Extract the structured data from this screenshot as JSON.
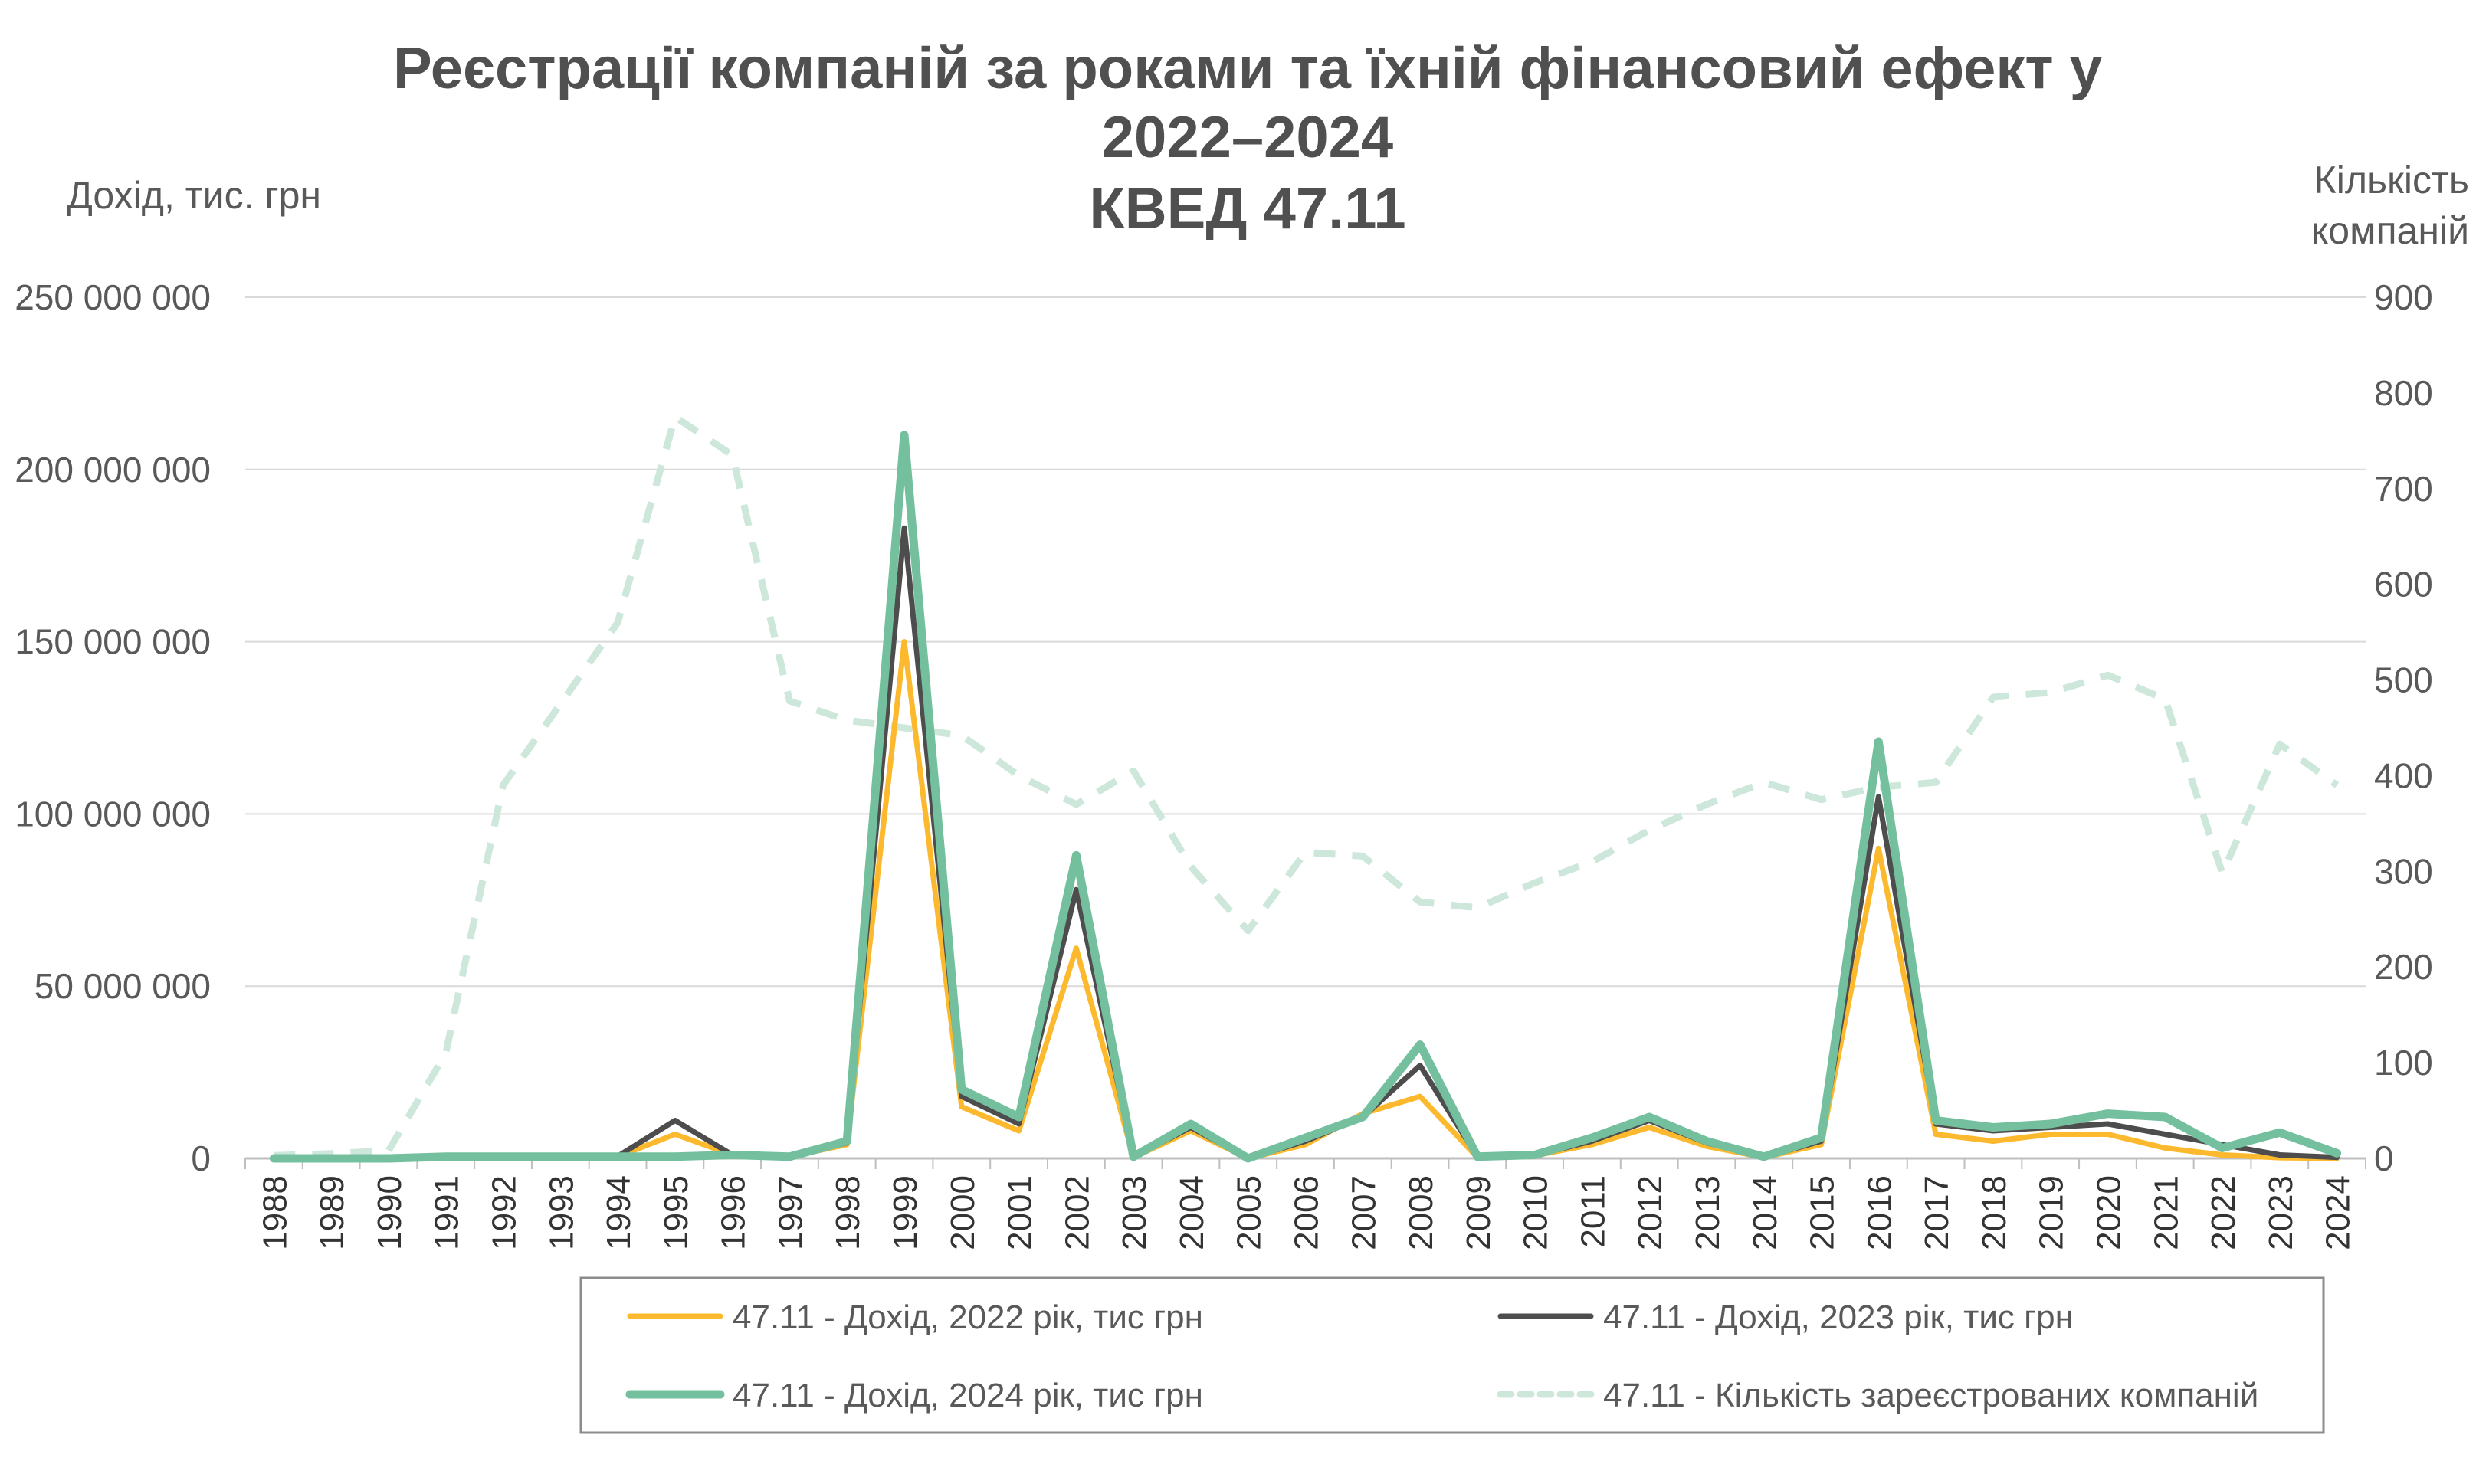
{
  "chart_data": {
    "type": "line",
    "title": [
      "Реєстрації компаній за роками та їхній фінансовий ефект у",
      "2022–2024",
      "КВЕД 47.11"
    ],
    "ylabel": "Дохід, тис. грн",
    "y2label": [
      "Кількість",
      "компаній"
    ],
    "ylim": [
      0,
      250000000
    ],
    "y2lim": [
      0,
      900
    ],
    "yticks": [
      "0",
      "50 000 000",
      "100 000 000",
      "150 000 000",
      "200 000 000",
      "250 000 000"
    ],
    "y2ticks": [
      "0",
      "100",
      "200",
      "300",
      "400",
      "500",
      "600",
      "700",
      "800",
      "900"
    ],
    "grid": true,
    "legend_position": "bottom",
    "categories": [
      "1988",
      "1989",
      "1990",
      "1991",
      "1992",
      "1993",
      "1994",
      "1995",
      "1996",
      "1997",
      "1998",
      "1999",
      "2000",
      "2001",
      "2002",
      "2003",
      "2004",
      "2005",
      "2006",
      "2007",
      "2008",
      "2009",
      "2010",
      "2011",
      "2012",
      "2013",
      "2014",
      "2015",
      "2016",
      "2017",
      "2018",
      "2019",
      "2020",
      "2021",
      "2022",
      "2023",
      "2024"
    ],
    "series": [
      {
        "name": "47.11 -  Дохід, 2022 рік, тис грн",
        "axis": "left",
        "color": "#FDB92E",
        "dashed": false,
        "values": [
          0,
          0,
          0,
          300000,
          300000,
          300000,
          500000,
          7000000,
          1000000,
          500000,
          4000000,
          150000000,
          15000000,
          8000000,
          61000000,
          300000,
          8000000,
          0,
          4000000,
          13000000,
          18000000,
          300000,
          800000,
          4000000,
          9000000,
          3500000,
          300000,
          4000000,
          90000000,
          7000000,
          5000000,
          7000000,
          7000000,
          3000000,
          1000000,
          200000,
          0
        ]
      },
      {
        "name": "47.11 -  Дохід, 2023 рік, тис грн",
        "axis": "left",
        "color": "#4D4D4D",
        "dashed": false,
        "values": [
          0,
          0,
          0,
          300000,
          300000,
          400000,
          600000,
          11000000,
          1000000,
          500000,
          4500000,
          183000000,
          18000000,
          10000000,
          78000000,
          400000,
          9000000,
          0,
          5000000,
          12000000,
          27000000,
          400000,
          900000,
          5000000,
          11000000,
          4500000,
          400000,
          5000000,
          105000000,
          10000000,
          8000000,
          9000000,
          10000000,
          7000000,
          4000000,
          1000000,
          300000
        ]
      },
      {
        "name": "47.11 -  Дохід, 2024 рік, тис грн",
        "axis": "left",
        "color": "#74C09E",
        "dashed": false,
        "values": [
          0,
          0,
          0,
          500000,
          500000,
          500000,
          500000,
          500000,
          1000000,
          500000,
          5000000,
          210000000,
          20000000,
          12000000,
          88000000,
          500000,
          10000000,
          0,
          6000000,
          12000000,
          33000000,
          500000,
          1000000,
          6000000,
          12000000,
          5000000,
          500000,
          6000000,
          121000000,
          11000000,
          9000000,
          10000000,
          13000000,
          12000000,
          3000000,
          7500000,
          1500000
        ]
      },
      {
        "name": "47.11 - Кількість зареєстрованих компаній",
        "axis": "right",
        "color": "#CDE7DB",
        "dashed": true,
        "values": [
          3,
          5,
          8,
          110,
          390,
          475,
          560,
          775,
          735,
          478,
          458,
          450,
          442,
          400,
          370,
          405,
          305,
          238,
          320,
          316,
          268,
          262,
          288,
          310,
          343,
          370,
          393,
          375,
          388,
          393,
          482,
          487,
          505,
          480,
          298,
          433,
          390
        ]
      }
    ]
  }
}
